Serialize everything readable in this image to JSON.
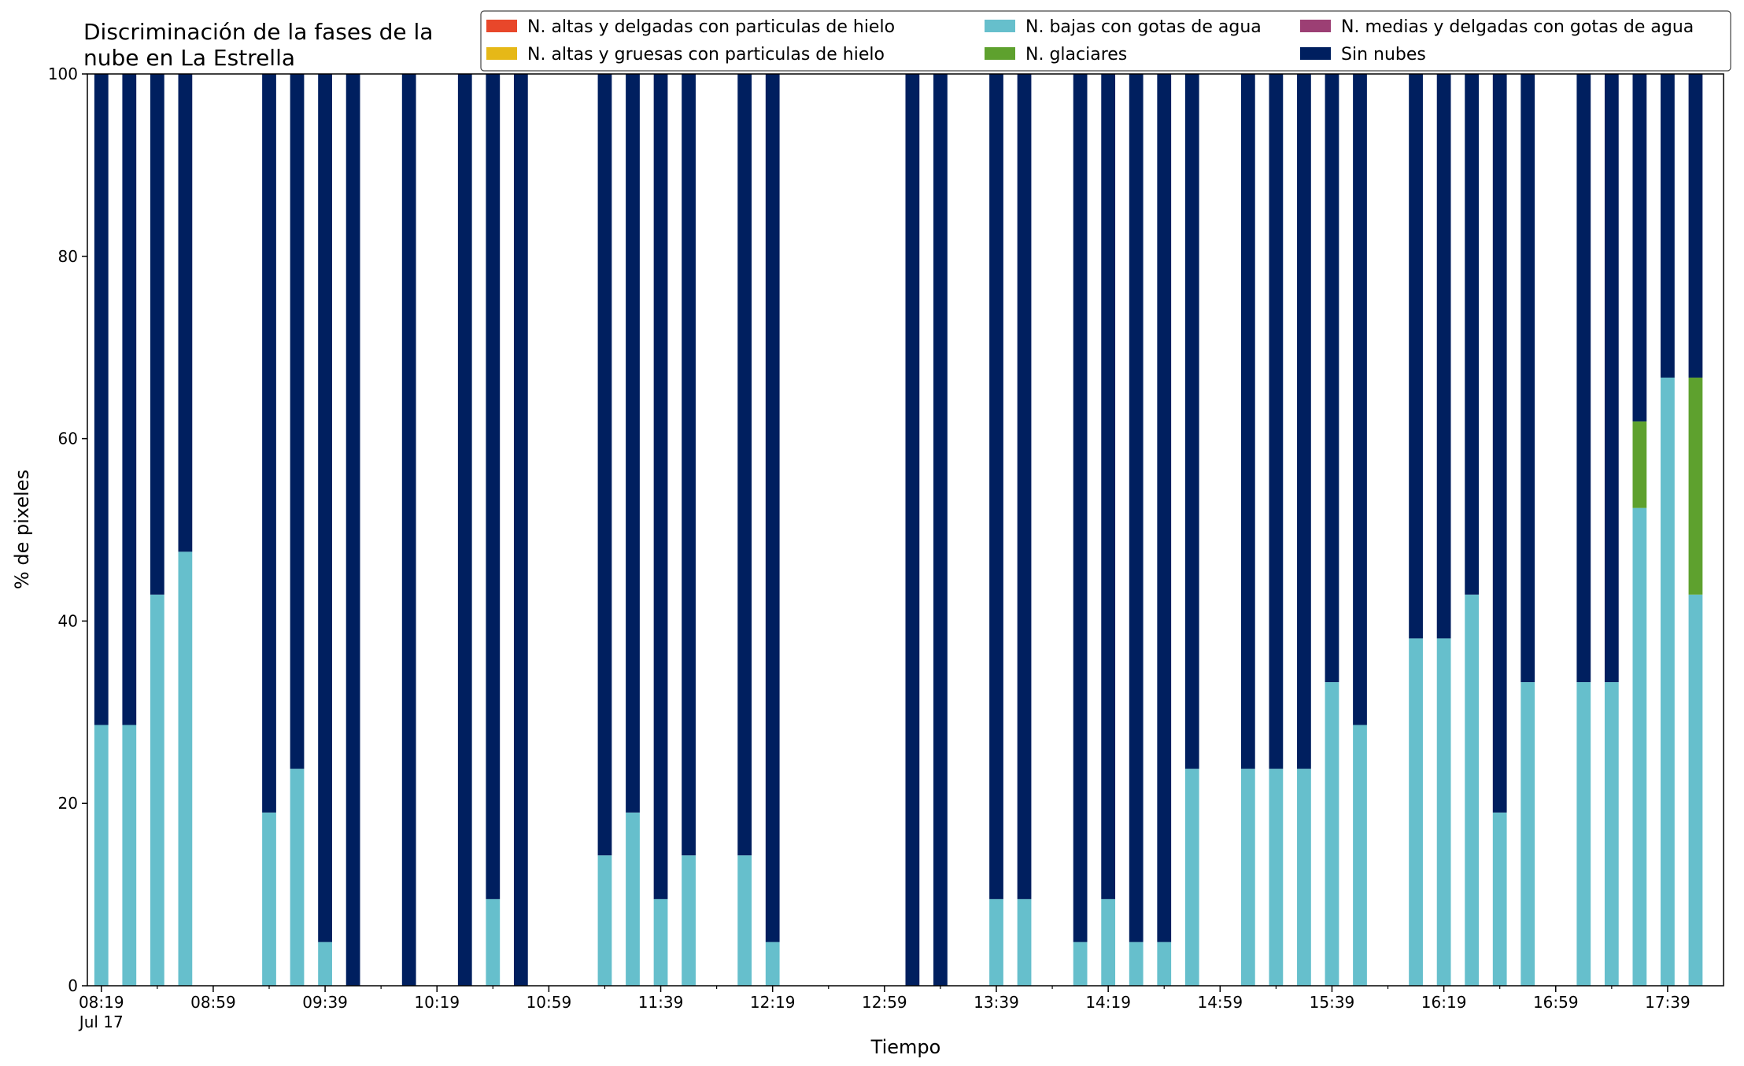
{
  "chart_data": {
    "type": "bar",
    "stacked": true,
    "title": "Discriminación de la fases de la\nnube en La Estrella",
    "title_lines": [
      "Discriminación de la fases de la",
      "nube en La Estrella"
    ],
    "xlabel": "Tiempo",
    "ylabel": "% de pixeles",
    "ylim": [
      0,
      100
    ],
    "yticks": [
      0,
      20,
      40,
      60,
      80,
      100
    ],
    "xlim": [
      "08:14",
      "17:59"
    ],
    "xticks": [
      "08:19",
      "08:59",
      "09:39",
      "10:19",
      "10:59",
      "11:39",
      "12:19",
      "12:59",
      "13:39",
      "14:19",
      "14:59",
      "15:39",
      "16:19",
      "16:59",
      "17:39"
    ],
    "xtick_sublabel": "Jul 17",
    "bar_interval_minutes": 10,
    "grid": false,
    "legend_position": "top-right",
    "legend": [
      {
        "label": "N. altas y delgadas con particulas de hielo",
        "color": "#e8472a"
      },
      {
        "label": "N. altas y gruesas con particulas de hielo",
        "color": "#e6b817"
      },
      {
        "label": "N. medias y delgadas con gotas de agua",
        "color": "#9c3f74"
      },
      {
        "label": "N. bajas con gotas de agua",
        "color": "#66bfcc"
      },
      {
        "label": "N. glaciares",
        "color": "#5ea12e"
      },
      {
        "label": "Sin nubes",
        "color": "#001f5f"
      }
    ],
    "series": [
      {
        "name": "N. altas y delgadas con particulas de hielo",
        "color": "#e8472a",
        "values": [
          0,
          0,
          0,
          0,
          0,
          0,
          0,
          0,
          0,
          0,
          0,
          0,
          0,
          0,
          0,
          0,
          0,
          0,
          0,
          0,
          0,
          0,
          0,
          0,
          0,
          0,
          0,
          0,
          0,
          0,
          0,
          0,
          0,
          0,
          0,
          0,
          0,
          0,
          0,
          0,
          0,
          0,
          0,
          0,
          0,
          0,
          0,
          0,
          0,
          0,
          0,
          0,
          0,
          0,
          0,
          0,
          0,
          0,
          0
        ]
      },
      {
        "name": "N. altas y gruesas con particulas de hielo",
        "color": "#e6b817",
        "values": [
          0,
          0,
          0,
          0,
          0,
          0,
          0,
          0,
          0,
          0,
          0,
          0,
          0,
          0,
          0,
          0,
          0,
          0,
          0,
          0,
          0,
          0,
          0,
          0,
          0,
          0,
          0,
          0,
          0,
          0,
          0,
          0,
          0,
          0,
          0,
          0,
          0,
          0,
          0,
          0,
          0,
          0,
          0,
          0,
          0,
          0,
          0,
          0,
          0,
          0,
          0,
          0,
          0,
          0,
          0,
          0,
          0,
          0,
          0
        ]
      },
      {
        "name": "N. medias y delgadas con gotas de agua",
        "color": "#9c3f74",
        "values": [
          0,
          0,
          0,
          0,
          0,
          0,
          0,
          0,
          0,
          0,
          0,
          0,
          0,
          0,
          0,
          0,
          0,
          0,
          0,
          0,
          0,
          0,
          0,
          0,
          0,
          0,
          0,
          0,
          0,
          0,
          0,
          0,
          0,
          0,
          0,
          0,
          0,
          0,
          0,
          0,
          0,
          0,
          0,
          0,
          0,
          0,
          0,
          0,
          0,
          0,
          0,
          0,
          0,
          0,
          0,
          0,
          0,
          0,
          0
        ]
      },
      {
        "name": "N. bajas con gotas de agua",
        "color": "#66bfcc",
        "values": [
          28.6,
          28.6,
          42.9,
          47.6,
          0,
          0,
          19.0,
          23.8,
          4.8,
          0,
          0,
          0,
          0,
          0,
          9.5,
          0,
          0,
          0,
          14.3,
          19.0,
          9.5,
          14.3,
          0,
          14.3,
          4.8,
          0,
          0,
          0,
          0,
          0,
          0,
          0,
          9.5,
          9.5,
          0,
          4.8,
          9.5,
          4.8,
          4.8,
          23.8,
          0,
          23.8,
          23.8,
          23.8,
          33.3,
          28.6,
          0,
          38.1,
          38.1,
          42.9,
          19.0,
          33.3,
          0,
          33.3,
          33.3,
          52.4,
          66.7,
          42.9,
          0
        ]
      },
      {
        "name": "N. glaciares",
        "color": "#5ea12e",
        "values": [
          0,
          0,
          0,
          0,
          0,
          0,
          0,
          0,
          0,
          0,
          0,
          0,
          0,
          0,
          0,
          0,
          0,
          0,
          0,
          0,
          0,
          0,
          0,
          0,
          0,
          0,
          0,
          0,
          0,
          0,
          0,
          0,
          0,
          0,
          0,
          0,
          0,
          0,
          0,
          0,
          0,
          0,
          0,
          0,
          0,
          0,
          0,
          0,
          0,
          0,
          0,
          0,
          0,
          0,
          0,
          9.5,
          0,
          23.8,
          0
        ]
      },
      {
        "name": "Sin nubes",
        "color": "#001f5f",
        "values": [
          71.4,
          71.4,
          57.1,
          52.4,
          0,
          0,
          81.0,
          76.2,
          95.2,
          100,
          0,
          100,
          0,
          100,
          90.5,
          100,
          0,
          0,
          85.7,
          81.0,
          90.5,
          85.7,
          0,
          85.7,
          95.2,
          0,
          0,
          0,
          0,
          100,
          100,
          0,
          90.5,
          90.5,
          0,
          95.2,
          90.5,
          95.2,
          95.2,
          76.2,
          0,
          76.2,
          76.2,
          76.2,
          66.7,
          71.4,
          0,
          61.9,
          61.9,
          57.1,
          81.0,
          66.7,
          0,
          66.7,
          66.7,
          38.1,
          33.3,
          33.3,
          0
        ]
      }
    ]
  }
}
